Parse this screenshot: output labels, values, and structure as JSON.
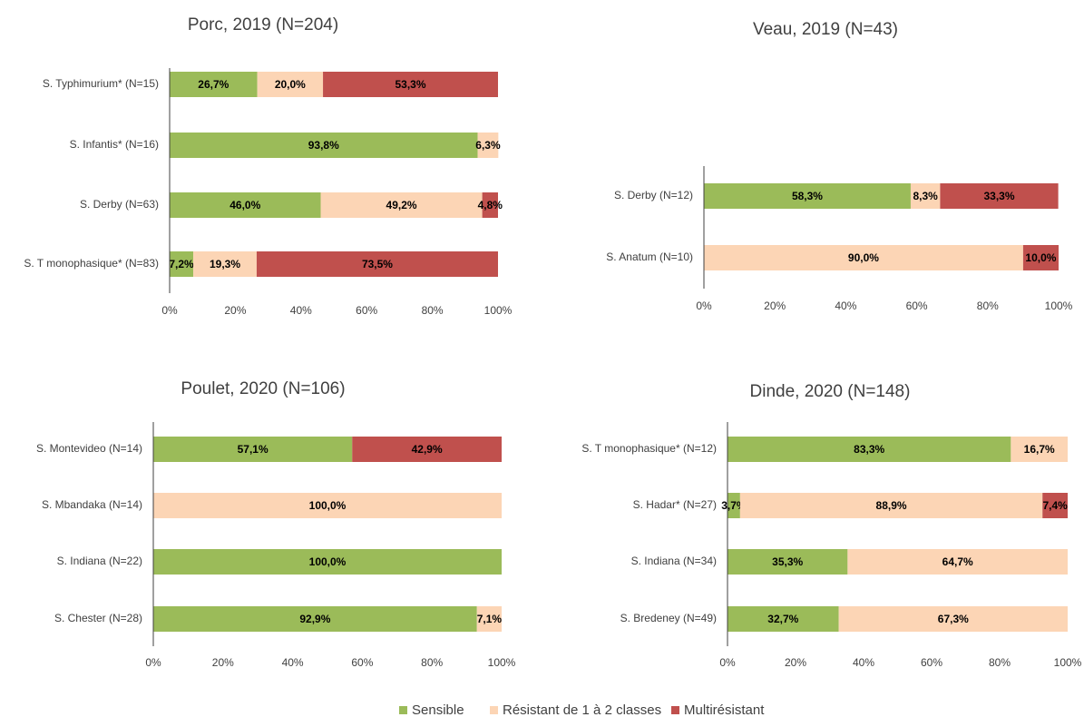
{
  "legend": [
    {
      "name": "Sensible",
      "color": "#9bbb59"
    },
    {
      "name": "Résistant de 1 à 2 classes",
      "color": "#fcd5b5"
    },
    {
      "name": "Multirésistant",
      "color": "#c0504d"
    }
  ],
  "chart_data": [
    {
      "type": "bar",
      "title": "Porc, 2019 (N=204)",
      "categories": [
        "S. Typhimurium* (N=15)",
        "S. Infantis* (N=16)",
        "S. Derby (N=63)",
        "S. T monophasique* (N=83)"
      ],
      "series": [
        {
          "values": [
            26.7,
            93.8,
            46.0,
            7.2
          ],
          "value_labels": [
            "26,7%",
            "93,8%",
            "46,0%",
            "7,2%"
          ]
        },
        {
          "values": [
            20.0,
            6.3,
            49.2,
            19.3
          ],
          "value_labels": [
            "20,0%",
            "6,3%",
            "49,2%",
            "19,3%"
          ]
        },
        {
          "values": [
            53.3,
            0,
            4.8,
            73.5
          ],
          "value_labels": [
            "53,3%",
            null,
            "4,8%",
            "73,5%"
          ]
        }
      ],
      "xlim": [
        0,
        100
      ],
      "xticks": [
        {
          "value": 0,
          "label": "0%"
        },
        {
          "value": 20,
          "label": "20%"
        },
        {
          "value": 40,
          "label": "40%"
        },
        {
          "value": 60,
          "label": "60%"
        },
        {
          "value": 80,
          "label": "80%"
        },
        {
          "value": 100,
          "label": "100%"
        }
      ]
    },
    {
      "type": "bar",
      "title": "Veau, 2019 (N=43)",
      "categories": [
        "S. Derby (N=12)",
        "S. Anatum (N=10)"
      ],
      "series": [
        {
          "values": [
            58.3,
            0
          ],
          "value_labels": [
            "58,3%",
            null
          ]
        },
        {
          "values": [
            8.3,
            90.0
          ],
          "value_labels": [
            "8,3%",
            "90,0%"
          ]
        },
        {
          "values": [
            33.3,
            10.0
          ],
          "value_labels": [
            "33,3%",
            "10,0%"
          ]
        }
      ],
      "xlim": [
        0,
        100
      ],
      "xticks": [
        {
          "value": 0,
          "label": "0%"
        },
        {
          "value": 20,
          "label": "20%"
        },
        {
          "value": 40,
          "label": "40%"
        },
        {
          "value": 60,
          "label": "60%"
        },
        {
          "value": 80,
          "label": "80%"
        },
        {
          "value": 100,
          "label": "100%"
        }
      ]
    },
    {
      "type": "bar",
      "title": "Poulet, 2020 (N=106)",
      "categories": [
        "S. Montevideo (N=14)",
        "S. Mbandaka (N=14)",
        "S. Indiana (N=22)",
        "S. Chester (N=28)"
      ],
      "series": [
        {
          "values": [
            57.1,
            0,
            100.0,
            92.9
          ],
          "value_labels": [
            "57,1%",
            null,
            "100,0%",
            "92,9%"
          ]
        },
        {
          "values": [
            0,
            100.0,
            0,
            7.1
          ],
          "value_labels": [
            null,
            "100,0%",
            null,
            "7,1%"
          ]
        },
        {
          "values": [
            42.9,
            0,
            0,
            0
          ],
          "value_labels": [
            "42,9%",
            null,
            null,
            null
          ]
        }
      ],
      "xlim": [
        0,
        100
      ],
      "xticks": [
        {
          "value": 0,
          "label": "0%"
        },
        {
          "value": 20,
          "label": "20%"
        },
        {
          "value": 40,
          "label": "40%"
        },
        {
          "value": 60,
          "label": "60%"
        },
        {
          "value": 80,
          "label": "80%"
        },
        {
          "value": 100,
          "label": "100%"
        }
      ]
    },
    {
      "type": "bar",
      "title": "Dinde, 2020 (N=148)",
      "categories": [
        "S. T monophasique* (N=12)",
        "S. Hadar* (N=27)",
        "S. Indiana (N=34)",
        "S. Bredeney (N=49)"
      ],
      "series": [
        {
          "values": [
            83.3,
            3.7,
            35.3,
            32.7
          ],
          "value_labels": [
            "83,3%",
            "3,7%",
            "35,3%",
            "32,7%"
          ]
        },
        {
          "values": [
            16.7,
            88.9,
            64.7,
            67.3
          ],
          "value_labels": [
            "16,7%",
            "88,9%",
            "64,7%",
            "67,3%"
          ]
        },
        {
          "values": [
            0,
            7.4,
            0,
            0
          ],
          "value_labels": [
            null,
            "7,4%",
            null,
            null
          ]
        }
      ],
      "xlim": [
        0,
        100
      ],
      "xticks": [
        {
          "value": 0,
          "label": "0%"
        },
        {
          "value": 20,
          "label": "20%"
        },
        {
          "value": 40,
          "label": "40%"
        },
        {
          "value": 60,
          "label": "60%"
        },
        {
          "value": 80,
          "label": "80%"
        },
        {
          "value": 100,
          "label": "100%"
        }
      ]
    }
  ]
}
